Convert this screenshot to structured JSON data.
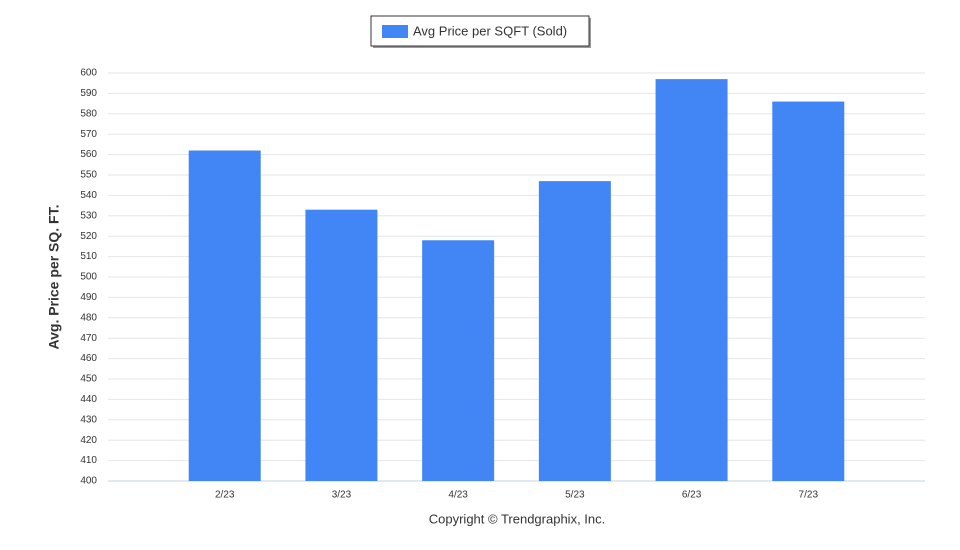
{
  "chart_data": {
    "type": "bar",
    "y_label": "Avg. Price per SQ. FT.",
    "credit": "Copyright © Trendgraphix, Inc.",
    "categories": [
      "2/23",
      "3/23",
      "4/23",
      "5/23",
      "6/23",
      "7/23"
    ],
    "series": [
      {
        "name": "Avg Price per SQFT (Sold)",
        "color": "#4285f4",
        "values": [
          562,
          533,
          518,
          547,
          597,
          586
        ]
      }
    ],
    "ylim": [
      400,
      600
    ],
    "yticks": [
      400,
      410,
      420,
      430,
      440,
      450,
      460,
      470,
      480,
      490,
      500,
      510,
      520,
      530,
      540,
      550,
      560,
      570,
      580,
      590,
      600
    ],
    "grid": true,
    "legend": "top"
  }
}
